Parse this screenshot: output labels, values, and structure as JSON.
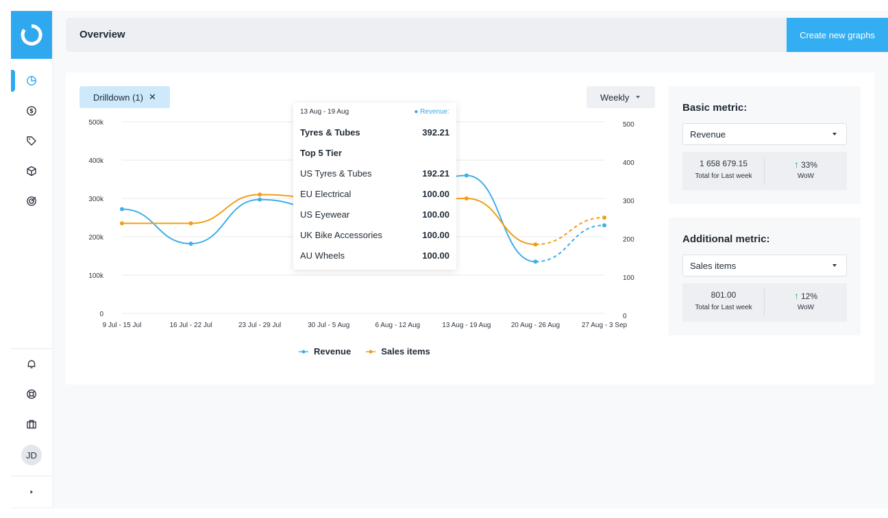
{
  "colors": {
    "accent": "#2fa8ef",
    "revenue": "#3daee9",
    "sales_items": "#f39c12",
    "up": "#27ae60"
  },
  "sidebar": {
    "logo": "ring-logo-icon",
    "items": [
      {
        "name": "overview",
        "icon": "pie-chart-icon",
        "active": true
      },
      {
        "name": "revenue",
        "icon": "dollar-circle-icon"
      },
      {
        "name": "tags",
        "icon": "tag-icon"
      },
      {
        "name": "products",
        "icon": "box-icon"
      },
      {
        "name": "goals",
        "icon": "target-icon"
      }
    ],
    "bottom_items": [
      {
        "name": "notifications",
        "icon": "bell-icon"
      },
      {
        "name": "support",
        "icon": "lifebuoy-icon"
      },
      {
        "name": "work",
        "icon": "briefcase-icon"
      }
    ],
    "avatar_initials": "JD",
    "expand_icon": "caret-right-icon"
  },
  "header": {
    "title": "Overview",
    "create_button": "Create new graphs"
  },
  "toolbar": {
    "drilldown_label": "Drilldown (1)",
    "drilldown_close": "✕",
    "period": "Weekly"
  },
  "chart_data": {
    "type": "line",
    "categories": [
      "9 Jul - 15 Jul",
      "16 Jul - 22 Jul",
      "23 Jul - 29 Jul",
      "30 Jul - 5 Aug",
      "6 Aug - 12 Aug",
      "13 Aug - 19 Aug",
      "20 Aug - 26 Aug",
      "27 Aug - 3 Sep"
    ],
    "y_left": {
      "ticks": [
        "0",
        "100k",
        "200k",
        "300k",
        "400k",
        "500k"
      ],
      "range": [
        0,
        500000
      ]
    },
    "y_right": {
      "ticks": [
        "0",
        "100",
        "200",
        "300",
        "400",
        "500"
      ],
      "range": [
        0,
        500
      ]
    },
    "series": [
      {
        "name": "Revenue",
        "axis": "left",
        "values": [
          272000,
          182000,
          297000,
          270000,
          300000,
          360000,
          135000,
          230000
        ],
        "projected_from_index": 6
      },
      {
        "name": "Sales items",
        "axis": "right",
        "values": [
          235,
          235,
          310,
          300,
          295,
          300,
          180,
          250
        ],
        "projected_from_index": 6
      }
    ],
    "grid": true,
    "legend": "bottom-center"
  },
  "tooltip": {
    "period": "13 Aug - 19 Aug",
    "series_label": "Revenue:",
    "rows": [
      {
        "label": "Tyres & Tubes",
        "value": "392.21",
        "bold": true
      },
      {
        "label": "Top 5 Tier",
        "value": "",
        "bold": true
      },
      {
        "label": "US Tyres & Tubes",
        "value": "192.21"
      },
      {
        "label": "EU Electrical",
        "value": "100.00"
      },
      {
        "label": "US Eyewear",
        "value": "100.00"
      },
      {
        "label": "UK Bike Accessories",
        "value": "100.00"
      },
      {
        "label": "AU Wheels",
        "value": "100.00"
      }
    ]
  },
  "basic_metric": {
    "title": "Basic metric:",
    "selected": "Revenue",
    "total_value": "1 658 679.15",
    "total_label": "Total for Last week",
    "change": "33%",
    "change_label": "WoW"
  },
  "additional_metric": {
    "title": "Additional metric:",
    "selected": "Sales items",
    "total_value": "801.00",
    "total_label": "Total for Last week",
    "change": "12%",
    "change_label": "WoW"
  }
}
